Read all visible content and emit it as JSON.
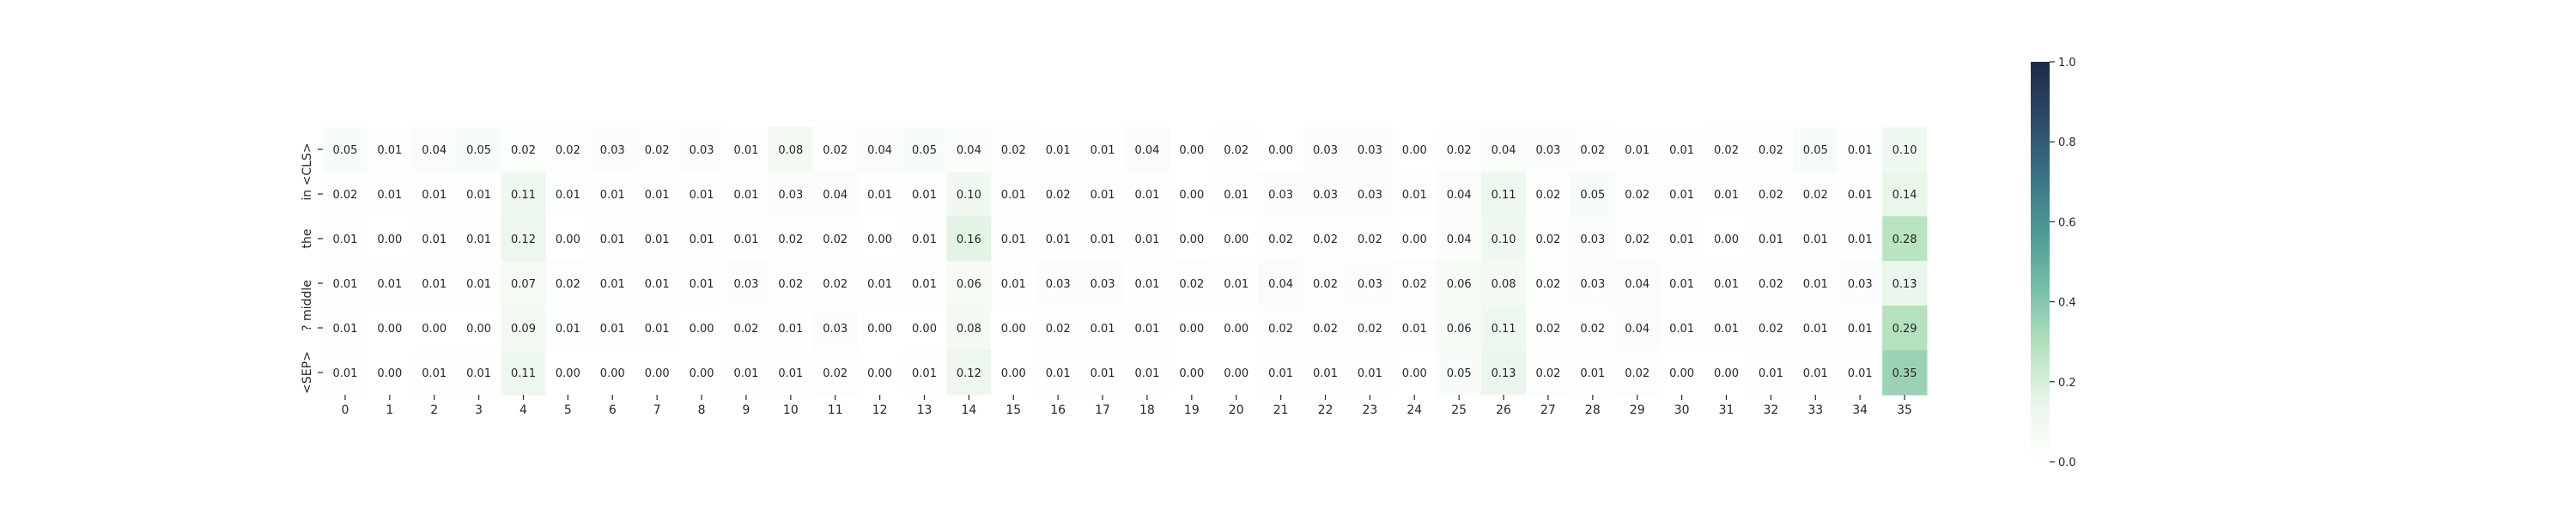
{
  "chart_data": {
    "type": "heatmap",
    "title": "",
    "xlabel": "",
    "ylabel": "",
    "x": [
      "0",
      "1",
      "2",
      "3",
      "4",
      "5",
      "6",
      "7",
      "8",
      "9",
      "10",
      "11",
      "12",
      "13",
      "14",
      "15",
      "16",
      "17",
      "18",
      "19",
      "20",
      "21",
      "22",
      "23",
      "24",
      "25",
      "26",
      "27",
      "28",
      "29",
      "30",
      "31",
      "32",
      "33",
      "34",
      "35"
    ],
    "y": [
      "<CLS>",
      "in",
      "the",
      "middle",
      "?",
      "<SEP>"
    ],
    "ytick_labels": [
      "in <CLS>",
      "the",
      "? middle",
      "<SEP>"
    ],
    "values": [
      [
        0.05,
        0.01,
        0.04,
        0.05,
        0.02,
        0.02,
        0.03,
        0.02,
        0.03,
        0.01,
        0.08,
        0.02,
        0.04,
        0.05,
        0.04,
        0.02,
        0.01,
        0.01,
        0.04,
        0.0,
        0.02,
        0.0,
        0.03,
        0.03,
        0.0,
        0.02,
        0.04,
        0.03,
        0.02,
        0.01,
        0.01,
        0.02,
        0.02,
        0.05,
        0.01,
        0.1
      ],
      [
        0.02,
        0.01,
        0.01,
        0.01,
        0.11,
        0.01,
        0.01,
        0.01,
        0.01,
        0.01,
        0.03,
        0.04,
        0.01,
        0.01,
        0.1,
        0.01,
        0.02,
        0.01,
        0.01,
        0.0,
        0.01,
        0.03,
        0.03,
        0.03,
        0.01,
        0.04,
        0.11,
        0.02,
        0.05,
        0.02,
        0.01,
        0.01,
        0.02,
        0.02,
        0.01,
        0.14
      ],
      [
        0.01,
        0.0,
        0.01,
        0.01,
        0.12,
        0.0,
        0.01,
        0.01,
        0.01,
        0.01,
        0.02,
        0.02,
        0.0,
        0.01,
        0.16,
        0.01,
        0.01,
        0.01,
        0.01,
        0.0,
        0.0,
        0.02,
        0.02,
        0.02,
        0.0,
        0.04,
        0.1,
        0.02,
        0.03,
        0.02,
        0.01,
        0.0,
        0.01,
        0.01,
        0.01,
        0.28
      ],
      [
        0.01,
        0.01,
        0.01,
        0.01,
        0.07,
        0.02,
        0.01,
        0.01,
        0.01,
        0.03,
        0.02,
        0.02,
        0.01,
        0.01,
        0.06,
        0.01,
        0.03,
        0.03,
        0.01,
        0.02,
        0.01,
        0.04,
        0.02,
        0.03,
        0.02,
        0.06,
        0.08,
        0.02,
        0.03,
        0.04,
        0.01,
        0.01,
        0.02,
        0.01,
        0.03,
        0.13
      ],
      [
        0.01,
        0.0,
        0.0,
        0.0,
        0.09,
        0.01,
        0.01,
        0.01,
        0.0,
        0.02,
        0.01,
        0.03,
        0.0,
        0.0,
        0.08,
        0.0,
        0.02,
        0.01,
        0.01,
        0.0,
        0.0,
        0.02,
        0.02,
        0.02,
        0.01,
        0.06,
        0.11,
        0.02,
        0.02,
        0.04,
        0.01,
        0.01,
        0.02,
        0.01,
        0.01,
        0.29
      ],
      [
        0.01,
        0.0,
        0.01,
        0.01,
        0.11,
        0.0,
        0.0,
        0.0,
        0.0,
        0.01,
        0.01,
        0.02,
        0.0,
        0.01,
        0.12,
        0.0,
        0.01,
        0.01,
        0.01,
        0.0,
        0.0,
        0.01,
        0.01,
        0.01,
        0.0,
        0.05,
        0.13,
        0.02,
        0.01,
        0.02,
        0.0,
        0.0,
        0.01,
        0.01,
        0.01,
        0.35
      ]
    ],
    "value_range": [
      0.0,
      1.0
    ],
    "colorbar": {
      "ticks": [
        "0.0",
        "0.2",
        "0.4",
        "0.6",
        "0.8",
        "1.0"
      ],
      "colors": [
        "#ffffff",
        "#e9f6ea",
        "#b7e2bf",
        "#78bfa8",
        "#4e9b96",
        "#3a7385",
        "#2c4a67",
        "#1d2b48"
      ]
    },
    "cell_label_format": "2-decimal",
    "grid": false,
    "legend": "colorbar-right"
  }
}
